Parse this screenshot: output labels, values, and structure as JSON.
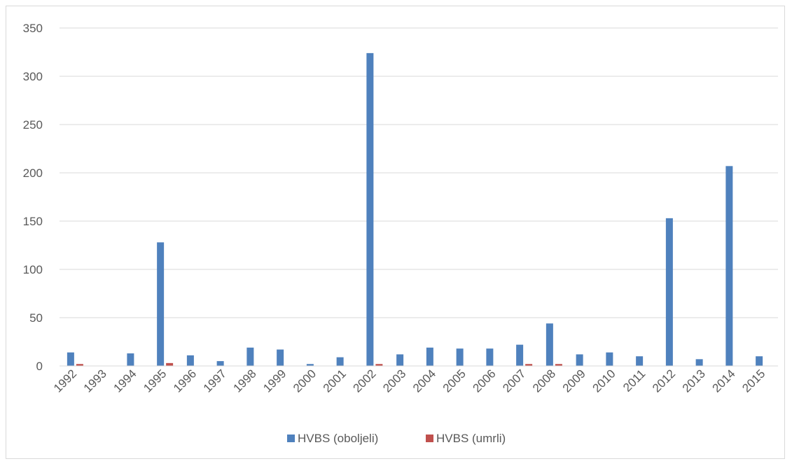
{
  "chart_data": {
    "type": "bar",
    "title": "",
    "xlabel": "",
    "ylabel": "",
    "ylim": [
      0,
      350
    ],
    "yticks": [
      0,
      50,
      100,
      150,
      200,
      250,
      300,
      350
    ],
    "grid": true,
    "legend_position": "bottom",
    "categories": [
      "1992",
      "1993",
      "1994",
      "1995",
      "1996",
      "1997",
      "1998",
      "1999",
      "2000",
      "2001",
      "2002",
      "2003",
      "2004",
      "2005",
      "2006",
      "2007",
      "2008",
      "2009",
      "2010",
      "2011",
      "2012",
      "2013",
      "2014",
      "2015"
    ],
    "series": [
      {
        "name": "HVBS (oboljeli)",
        "color": "#4f81bd",
        "values": [
          14,
          0,
          13,
          128,
          11,
          5,
          19,
          17,
          2,
          9,
          324,
          12,
          19,
          18,
          18,
          22,
          44,
          12,
          14,
          10,
          153,
          7,
          207,
          10
        ]
      },
      {
        "name": "HVBS (umrli)",
        "color": "#c0504d",
        "values": [
          2,
          0,
          0,
          3,
          0,
          0,
          0,
          0,
          0,
          0,
          2,
          0,
          0,
          0,
          0,
          2,
          2,
          0,
          0,
          0,
          0,
          0,
          0,
          0
        ]
      }
    ]
  }
}
